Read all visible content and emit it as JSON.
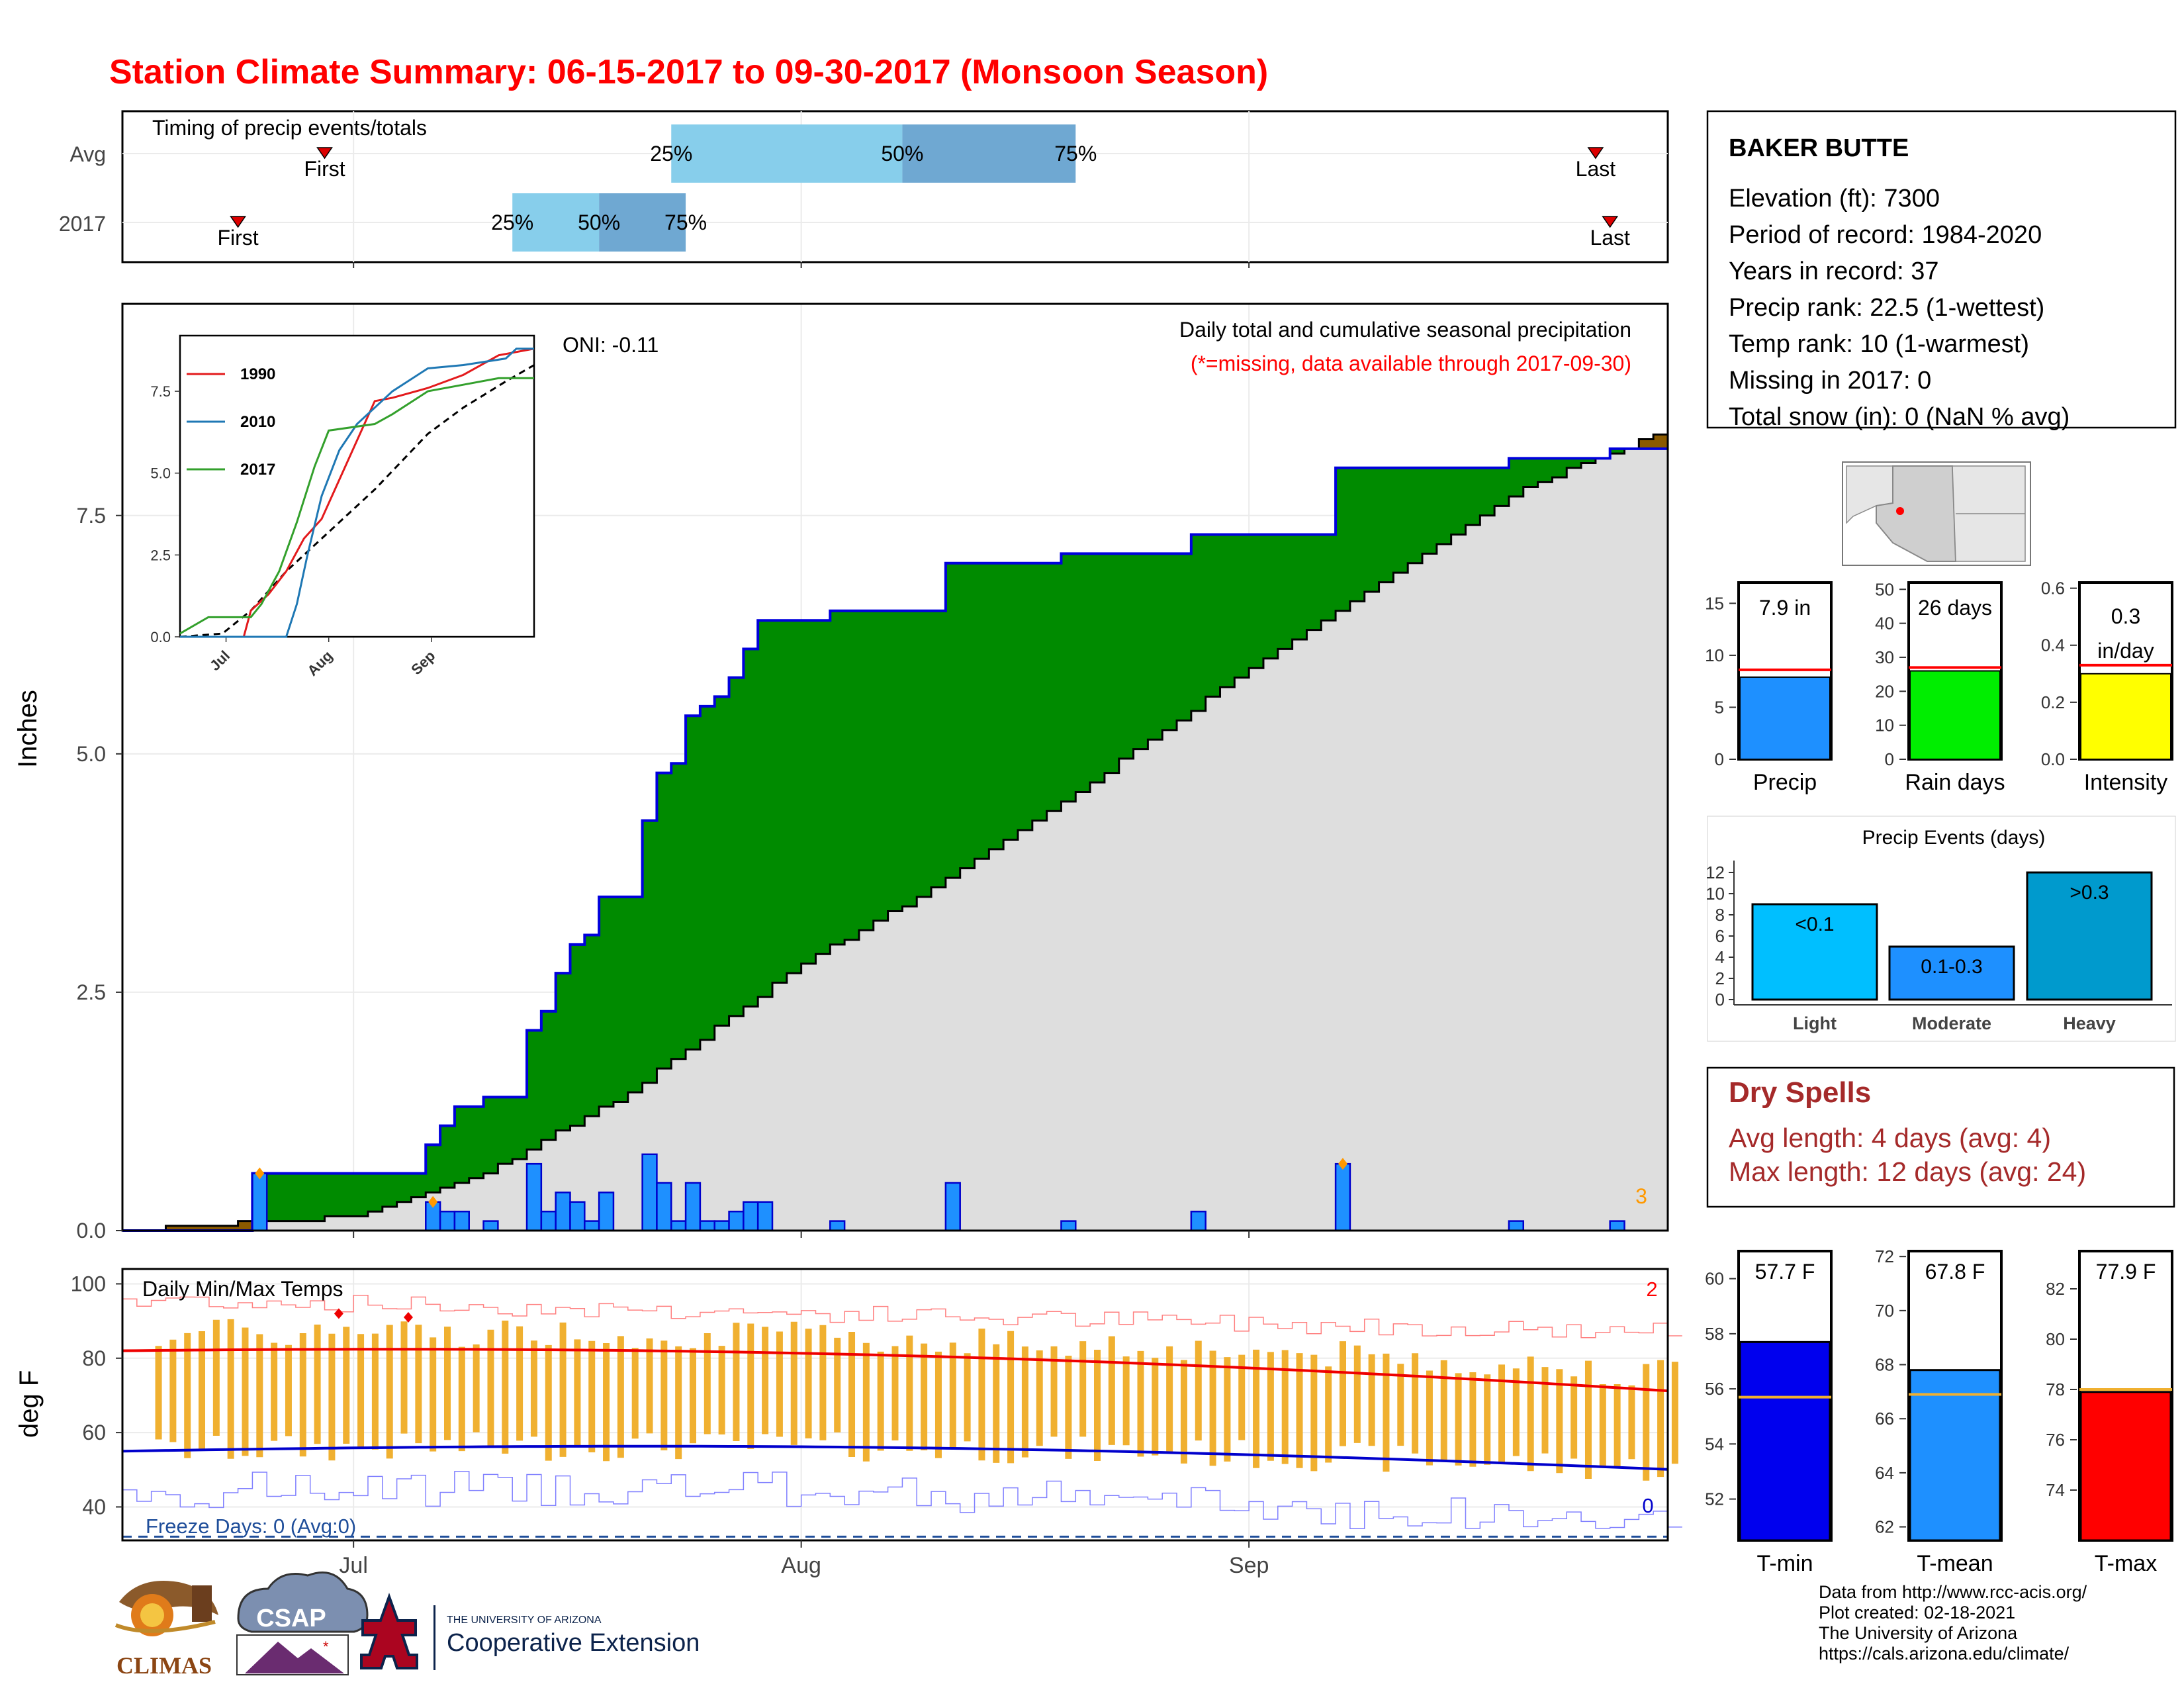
{
  "title": "Station Climate Summary: 06-15-2017 to 09-30-2017 (Monsoon Season)",
  "timing": {
    "panel_title": "Timing of precip events/totals",
    "rows": [
      {
        "label": "Avg",
        "first_date": "2017-06-29",
        "q25_date": "2017-07-23",
        "q50_date": "2017-08-08",
        "q75_date": "2017-08-20",
        "last_date": "2017-09-25"
      },
      {
        "label": "2017",
        "first_date": "2017-06-23",
        "q25_date": "2017-07-12",
        "q50_date": "2017-07-18",
        "q75_date": "2017-07-24",
        "last_date": "2017-09-26"
      }
    ],
    "labels": {
      "first": "First",
      "last": "Last",
      "q25": "25%",
      "q50": "50%",
      "q75": "75%"
    },
    "colors": {
      "q25_50": "#87ceeb",
      "q50_75": "#6fa8d2"
    }
  },
  "precip": {
    "title": "Daily total and cumulative seasonal precipitation",
    "subtitle": "(*=missing, data available through 2017-09-30)",
    "oni": "ONI: -0.11",
    "ylabel": "Inches",
    "yticks": [
      "0.0",
      "2.5",
      "5.0",
      "7.5"
    ],
    "missing_count": "3"
  },
  "temps": {
    "title": "Daily Min/Max Temps",
    "ylabel": "deg F",
    "yticks": [
      "40",
      "60",
      "80",
      "100"
    ],
    "freeze_text": "Freeze Days: 0 (Avg:0)",
    "max_count": "2",
    "min_count": "0"
  },
  "xaxis": {
    "ticks": [
      "Jul",
      "Aug",
      "Sep"
    ]
  },
  "inset": {
    "series": [
      {
        "name": "1990",
        "color": "#e31a1c"
      },
      {
        "name": "2010",
        "color": "#1f78b4"
      },
      {
        "name": "2017",
        "color": "#33a02c"
      }
    ],
    "yticks": [
      "0.0",
      "2.5",
      "5.0",
      "7.5"
    ],
    "xticks": [
      "Jul",
      "Aug",
      "Sep"
    ]
  },
  "station": {
    "name": "BAKER BUTTE",
    "lines": [
      "Elevation (ft): 7300",
      "Period of record: 1984-2020",
      "Years in record: 37",
      "Precip rank: 22.5 (1-wettest)",
      "Temp rank: 10 (1-warmest)",
      "Missing in 2017: 0",
      "Total snow (in): 0 (NaN % avg)"
    ]
  },
  "summary_bars": [
    {
      "label": "Precip",
      "value_text": "7.9 in",
      "value": 7.9,
      "avg": 8.6,
      "ymax": 17,
      "yticks": [
        "0",
        "5",
        "10",
        "15"
      ],
      "color": "#1e90ff"
    },
    {
      "label": "Rain days",
      "value_text": "26 days",
      "value": 26,
      "avg": 27,
      "ymax": 52,
      "yticks": [
        "0",
        "10",
        "20",
        "30",
        "40",
        "50"
      ],
      "color": "#00ee00"
    },
    {
      "label": "Intensity",
      "value_text": "0.3 in/day",
      "value": 0.3,
      "avg": 0.33,
      "ymax": 0.62,
      "yticks": [
        "0.0",
        "0.2",
        "0.4",
        "0.6"
      ],
      "color": "#ffff00"
    }
  ],
  "precip_events": {
    "title": "Precip Events (days)",
    "yticks": [
      "0",
      "2",
      "4",
      "6",
      "8",
      "10",
      "12"
    ],
    "bars": [
      {
        "category": "Light",
        "label": "<0.1",
        "value": 9,
        "color": "#00bfff"
      },
      {
        "category": "Moderate",
        "label": "0.1-0.3",
        "value": 5,
        "color": "#1e90ff"
      },
      {
        "category": "Heavy",
        "label": ">0.3",
        "value": 12,
        "color": "#009acd"
      }
    ]
  },
  "dry_spells": {
    "title": "Dry Spells",
    "avg_line": "Avg length: 4 days (avg: 4)",
    "max_line": "Max length: 12 days (avg: 24)",
    "color": "#a52a2a"
  },
  "temp_bars": [
    {
      "label": "T-min",
      "value_text": "57.7 F",
      "value": 57.7,
      "avg": 55.7,
      "ymin": 50.5,
      "ymax": 61,
      "yticks": [
        "52",
        "54",
        "56",
        "58",
        "60"
      ],
      "color": "#0000ee"
    },
    {
      "label": "T-mean",
      "value_text": "67.8 F",
      "value": 67.8,
      "avg": 66.9,
      "ymin": 61.5,
      "ymax": 72.2,
      "yticks": [
        "62",
        "64",
        "66",
        "68",
        "70",
        "72"
      ],
      "color": "#1e90ff"
    },
    {
      "label": "T-max",
      "value_text": "77.9 F",
      "value": 77.9,
      "avg": 78.0,
      "ymin": 72,
      "ymax": 83.5,
      "yticks": [
        "74",
        "76",
        "78",
        "80",
        "82"
      ],
      "color": "#ff0000"
    }
  ],
  "footer": [
    "Data from http://www.rcc-acis.org/",
    "Plot created: 02-18-2021",
    "The University of Arizona",
    "https://cals.arizona.edu/climate/"
  ],
  "logos": {
    "climas": "CLIMAS",
    "csap": "CSAP",
    "ua_top": "THE UNIVERSITY OF ARIZONA",
    "ua_bottom": "Cooperative Extension"
  },
  "chart_data": [
    {
      "type": "area",
      "title": "Daily total and cumulative seasonal precipitation",
      "ylabel": "Inches",
      "ylim": [
        0,
        9.2
      ],
      "x_range": [
        "2017-06-15",
        "2017-09-30"
      ],
      "daily_2017": [
        {
          "date": "2017-06-24",
          "value": 0.6
        },
        {
          "date": "2017-07-06",
          "value": 0.3
        },
        {
          "date": "2017-07-07",
          "value": 0.2
        },
        {
          "date": "2017-07-08",
          "value": 0.2
        },
        {
          "date": "2017-07-10",
          "value": 0.1
        },
        {
          "date": "2017-07-13",
          "value": 0.7
        },
        {
          "date": "2017-07-14",
          "value": 0.2
        },
        {
          "date": "2017-07-15",
          "value": 0.4
        },
        {
          "date": "2017-07-16",
          "value": 0.3
        },
        {
          "date": "2017-07-17",
          "value": 0.1
        },
        {
          "date": "2017-07-18",
          "value": 0.4
        },
        {
          "date": "2017-07-21",
          "value": 0.8
        },
        {
          "date": "2017-07-22",
          "value": 0.5
        },
        {
          "date": "2017-07-23",
          "value": 0.1
        },
        {
          "date": "2017-07-24",
          "value": 0.5
        },
        {
          "date": "2017-07-25",
          "value": 0.1
        },
        {
          "date": "2017-07-26",
          "value": 0.1
        },
        {
          "date": "2017-07-27",
          "value": 0.2
        },
        {
          "date": "2017-07-28",
          "value": 0.3
        },
        {
          "date": "2017-07-29",
          "value": 0.3
        },
        {
          "date": "2017-08-03",
          "value": 0.1
        },
        {
          "date": "2017-08-11",
          "value": 0.5
        },
        {
          "date": "2017-08-19",
          "value": 0.1
        },
        {
          "date": "2017-08-28",
          "value": 0.2
        },
        {
          "date": "2017-09-07",
          "value": 0.7
        },
        {
          "date": "2017-09-19",
          "value": 0.1
        },
        {
          "date": "2017-09-26",
          "value": 0.1
        }
      ],
      "avg_cumulative": [
        {
          "date": "2017-06-15",
          "value": 0.0
        },
        {
          "date": "2017-07-01",
          "value": 0.15
        },
        {
          "date": "2017-07-10",
          "value": 0.6
        },
        {
          "date": "2017-07-20",
          "value": 1.45
        },
        {
          "date": "2017-08-01",
          "value": 2.8
        },
        {
          "date": "2017-08-10",
          "value": 3.6
        },
        {
          "date": "2017-08-20",
          "value": 4.6
        },
        {
          "date": "2017-09-01",
          "value": 5.9
        },
        {
          "date": "2017-09-10",
          "value": 6.8
        },
        {
          "date": "2017-09-20",
          "value": 7.8
        },
        {
          "date": "2017-09-30",
          "value": 8.4
        }
      ],
      "extreme_markers": [
        {
          "date": "2017-06-24",
          "value": 0.6
        },
        {
          "date": "2017-07-06",
          "value": 0.3
        },
        {
          "date": "2017-09-07",
          "value": 0.7
        }
      ]
    },
    {
      "type": "line",
      "title": "Daily Min/Max Temps",
      "ylabel": "deg F",
      "ylim": [
        32,
        104
      ],
      "freeze_line": 32,
      "avg_max_range": [
        70,
        84
      ],
      "avg_min_range": [
        50,
        57
      ]
    },
    {
      "type": "line",
      "title": "",
      "series": [
        {
          "name": "1990",
          "final": 8.8
        },
        {
          "name": "2010",
          "final": 8.8
        },
        {
          "name": "2017",
          "final": 7.9
        }
      ],
      "ylim": [
        0,
        9
      ]
    },
    {
      "type": "bar",
      "title": "Precip Events (days)",
      "categories": [
        "Light",
        "Moderate",
        "Heavy"
      ],
      "values": [
        9,
        5,
        12
      ]
    }
  ]
}
